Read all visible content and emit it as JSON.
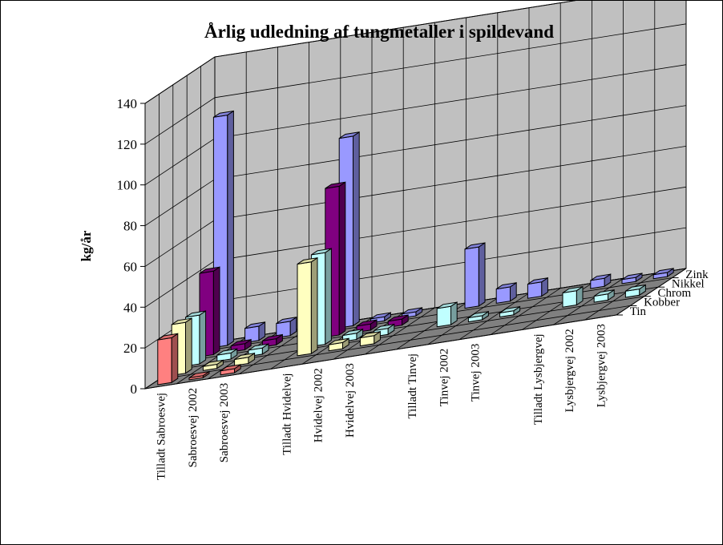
{
  "chart_data": {
    "type": "bar",
    "subtype": "3d-column",
    "title": "Årlig udledning af tungmetaller i spildevand",
    "ylabel": "kg/år",
    "xlabel": "",
    "ylim": [
      0,
      140
    ],
    "yticks": [
      0,
      20,
      40,
      60,
      80,
      100,
      120,
      140
    ],
    "grid": true,
    "legend": "none",
    "categories": [
      "Tilladt Sabroesvej",
      "Sabroesvej 2002",
      "Sabroesvej 2003",
      "",
      "Tilladt Hvidelvej",
      "Hvidelvej 2002",
      "Hvidelvej 2003",
      "",
      "Tilladt Tinvej",
      "Tinvej 2002",
      "Tinvej 2003",
      "",
      "Tilladt Lysbjergvej",
      "Lysbjergvej 2002",
      "Lysbjergvej 2003"
    ],
    "series": [
      {
        "name": "Tin",
        "color": "#ff8080",
        "values": [
          22,
          1,
          2,
          null,
          null,
          null,
          null,
          null,
          null,
          null,
          null,
          null,
          null,
          null,
          null
        ]
      },
      {
        "name": "Kobber",
        "color": "#ffffc0",
        "values": [
          25,
          2,
          3,
          null,
          45,
          3,
          4,
          null,
          null,
          null,
          null,
          null,
          null,
          null,
          null
        ]
      },
      {
        "name": "Chrom",
        "color": "#c0ffff",
        "values": [
          24,
          3,
          3,
          null,
          45,
          3,
          3,
          null,
          9,
          2,
          2,
          null,
          7,
          3,
          3
        ]
      },
      {
        "name": "Nikkel",
        "color": "#800080",
        "values": [
          41,
          3,
          3,
          null,
          73,
          3,
          3,
          null,
          null,
          null,
          null,
          null,
          null,
          null,
          null
        ]
      },
      {
        "name": "Zink",
        "color": "#9999ff",
        "values": [
          113,
          7,
          7,
          null,
          93,
          2,
          2,
          null,
          29,
          7,
          7,
          null,
          4,
          2,
          2
        ]
      }
    ]
  }
}
